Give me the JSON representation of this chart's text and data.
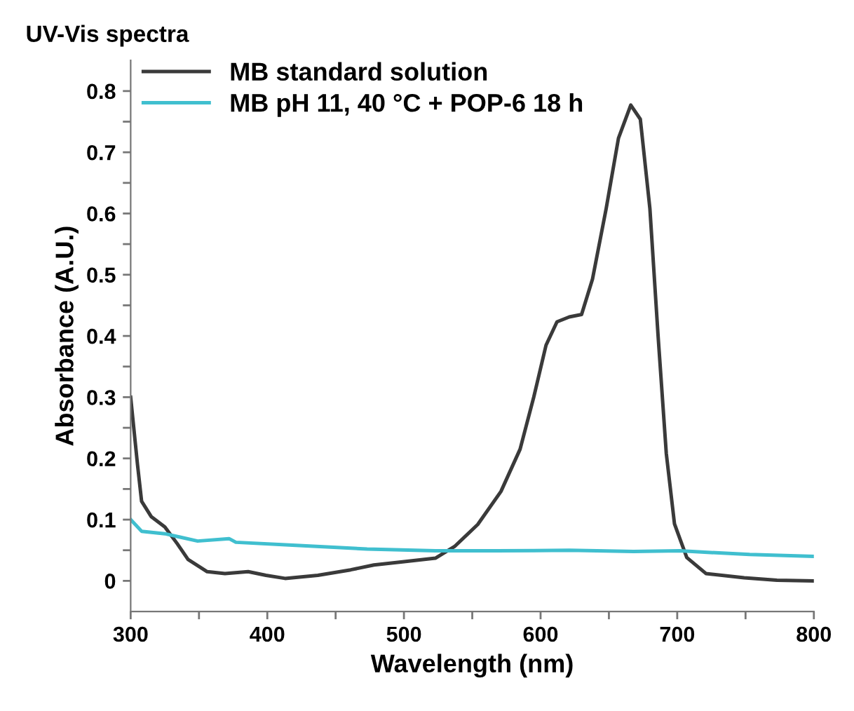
{
  "chart_data": {
    "type": "line",
    "title": "UV-Vis spectra",
    "xlabel": "Wavelength (nm)",
    "ylabel": "Absorbance (A.U.)",
    "xlim": [
      300,
      800
    ],
    "ylim": [
      -0.05,
      0.85
    ],
    "xticks": [
      300,
      {
        "value": 350,
        "label": null
      },
      400,
      {
        "value": 450,
        "label": null
      },
      500,
      {
        "value": 550,
        "label": null
      },
      600,
      {
        "value": 650,
        "label": null
      },
      700,
      {
        "value": 750,
        "label": null
      },
      800
    ],
    "yticks": [
      0,
      {
        "value": 0.05,
        "label": null
      },
      0.1,
      {
        "value": 0.15,
        "label": null
      },
      0.2,
      {
        "value": 0.25,
        "label": null
      },
      0.3,
      {
        "value": 0.35,
        "label": null
      },
      0.4,
      {
        "value": 0.45,
        "label": null
      },
      0.5,
      {
        "value": 0.55,
        "label": null
      },
      0.6,
      {
        "value": 0.65,
        "label": null
      },
      0.7,
      {
        "value": 0.75,
        "label": null
      },
      0.8
    ],
    "grid": false,
    "legend": "top left",
    "marker": "none",
    "line_style": "solid",
    "series": [
      {
        "name": "MB standard solution",
        "color": "#3a3a3a",
        "x": [
          300,
          305,
          308,
          315,
          325,
          334,
          342,
          356,
          369,
          386,
          399,
          413,
          437,
          461,
          478,
          499,
          523,
          537,
          554,
          571,
          585,
          595,
          604,
          612,
          621,
          630,
          638,
          648,
          657,
          666,
          673,
          680,
          686,
          692,
          698,
          707,
          721,
          749,
          773,
          800
        ],
        "values": [
          0.3,
          0.19,
          0.13,
          0.105,
          0.088,
          0.061,
          0.035,
          0.015,
          0.012,
          0.015,
          0.009,
          0.004,
          0.009,
          0.018,
          0.026,
          0.031,
          0.037,
          0.056,
          0.092,
          0.146,
          0.215,
          0.3,
          0.385,
          0.423,
          0.431,
          0.435,
          0.493,
          0.608,
          0.723,
          0.777,
          0.754,
          0.608,
          0.4,
          0.208,
          0.093,
          0.038,
          0.012,
          0.005,
          0.001,
          0.0
        ]
      },
      {
        "name": "MB pH 11, 40 °C + POP-6 18 h",
        "color": "#40bfcf",
        "x": [
          300,
          308,
          325,
          349,
          372,
          377,
          421,
          473,
          523,
          568,
          621,
          668,
          702,
          753,
          800
        ],
        "values": [
          0.1,
          0.081,
          0.077,
          0.065,
          0.069,
          0.063,
          0.058,
          0.052,
          0.049,
          0.049,
          0.05,
          0.048,
          0.049,
          0.043,
          0.04
        ]
      }
    ]
  }
}
